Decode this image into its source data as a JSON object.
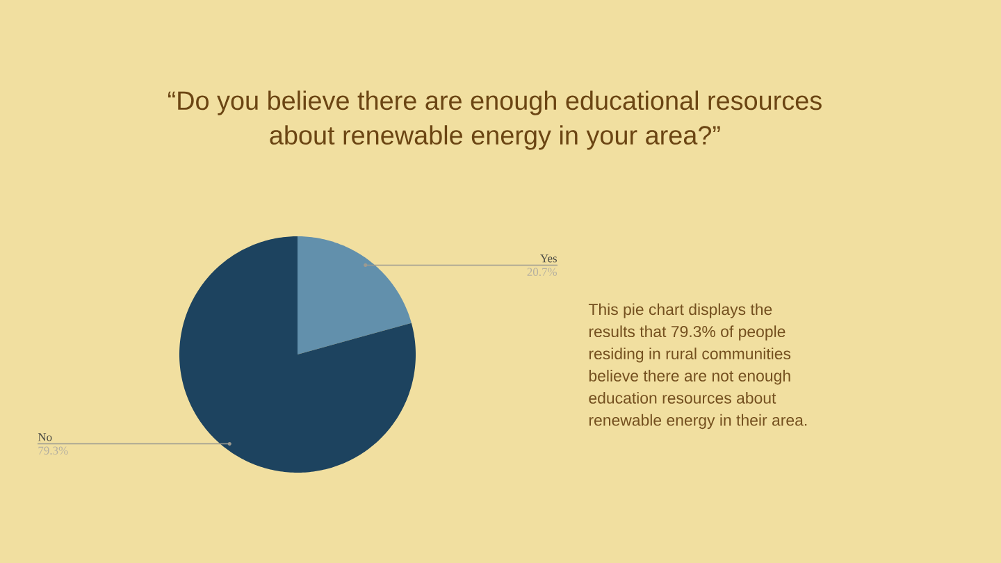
{
  "chart_data": {
    "type": "pie",
    "title": "“Do you believe there are enough educational resources about renewable energy in your area?”",
    "categories": [
      "Yes",
      "No"
    ],
    "values": [
      20.7,
      79.3
    ],
    "colors": [
      "#6290ac",
      "#1d435f"
    ],
    "value_labels": [
      "20.7%",
      "79.3%"
    ],
    "annotations": [
      "This pie chart displays the results that 79.3% of people residing in rural communities believe there are not enough education resources about renewable energy in their area."
    ]
  }
}
